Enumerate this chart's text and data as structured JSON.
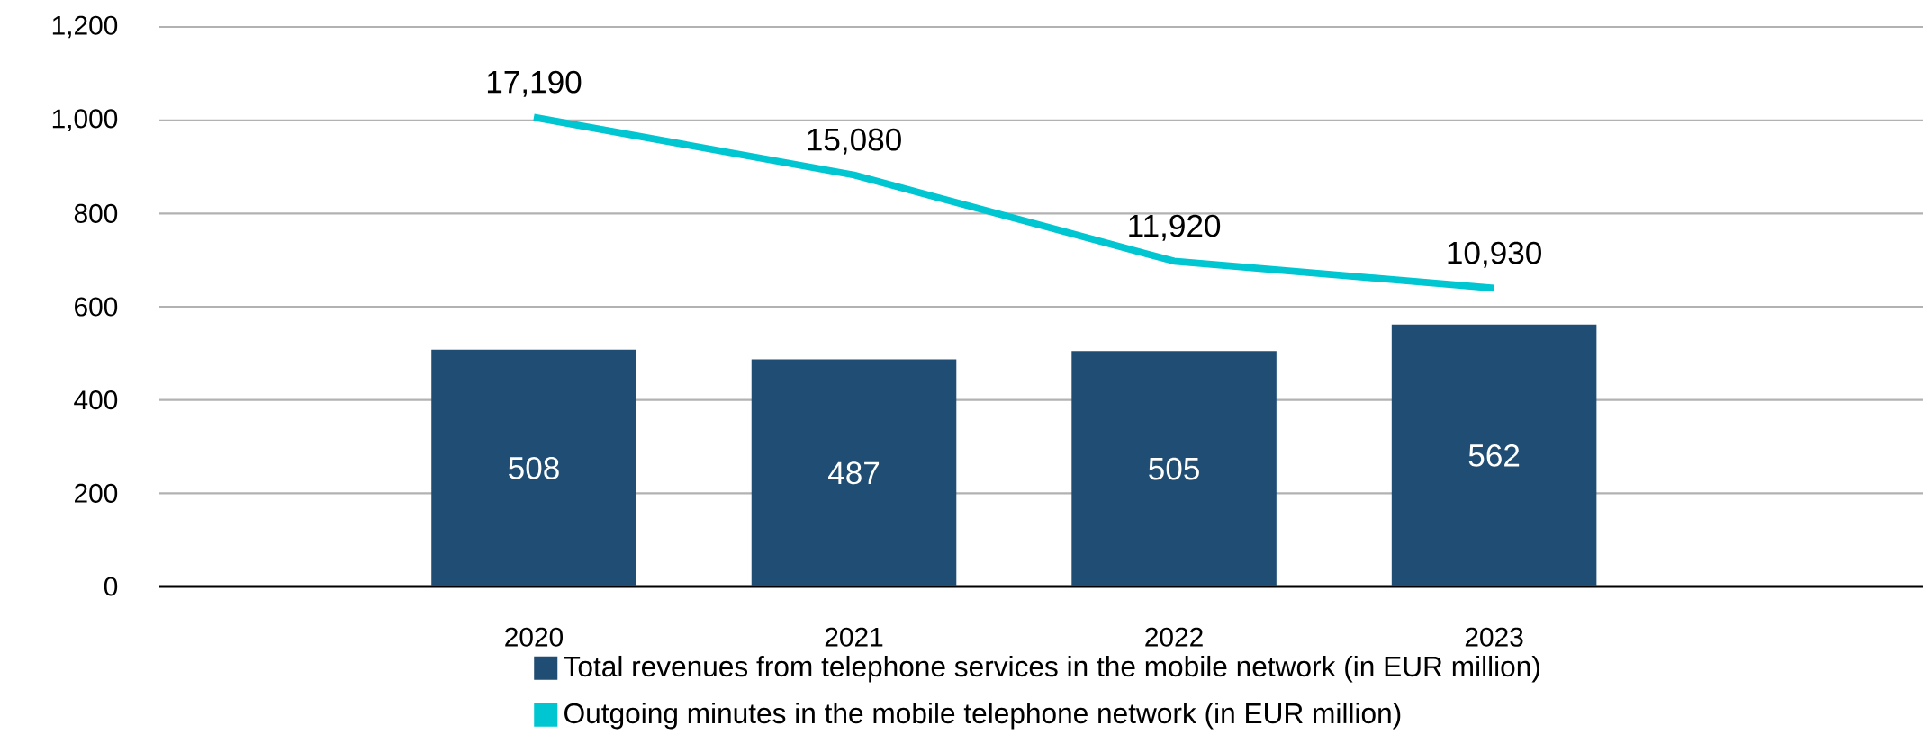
{
  "chart_data": {
    "type": "bar",
    "categories": [
      "2020",
      "2021",
      "2022",
      "2023"
    ],
    "series": [
      {
        "name": "Total revenues from telephone services in the mobile network (in EUR million)",
        "color": "#204d73",
        "values": [
          508,
          487,
          505,
          562
        ]
      },
      {
        "name": "Outgoing minutes in the mobile telephone network (in EUR million)",
        "type": "line",
        "axis": "y2",
        "color": "#00c6d2",
        "values": [
          17190,
          15080,
          11920,
          10930
        ],
        "value_labels": [
          "17,190",
          "15,080",
          "11,920",
          "10,930"
        ]
      }
    ],
    "ylim": [
      0,
      1200
    ],
    "yticks": [
      {
        "value": 0,
        "label": "0"
      },
      {
        "value": 200,
        "label": "200"
      },
      {
        "value": 400,
        "label": "400"
      },
      {
        "value": 600,
        "label": "600"
      },
      {
        "value": 800,
        "label": "800"
      },
      {
        "value": 1000,
        "label": "1,000"
      },
      {
        "value": 1200,
        "label": "1,200"
      }
    ],
    "y2lim": [
      0,
      20500
    ],
    "data_labels": true,
    "grid": "y",
    "legend": "bottom",
    "marker": "none"
  }
}
